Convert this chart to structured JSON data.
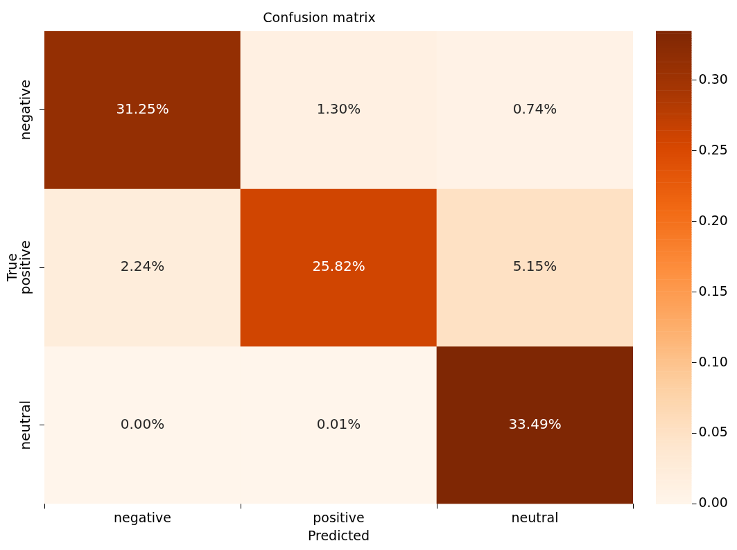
{
  "chart_data": {
    "type": "heatmap",
    "title": "Confusion matrix",
    "xlabel": "Predicted",
    "ylabel": "True",
    "categories": [
      "negative",
      "positive",
      "neutral"
    ],
    "y_categories": [
      "negative",
      "positive",
      "neutral"
    ],
    "cells": [
      [
        0.3125,
        0.013,
        0.0074
      ],
      [
        0.0224,
        0.2582,
        0.0515
      ],
      [
        0,
        0.0001,
        0.3349
      ]
    ],
    "cell_labels": [
      [
        "31.25%",
        "1.30%",
        "0.74%"
      ],
      [
        "2.24%",
        "25.82%",
        "5.15%"
      ],
      [
        "0.00%",
        "0.01%",
        "33.49%"
      ]
    ],
    "clim": [
      0,
      0.3349
    ],
    "cticks": [
      {
        "value": 0,
        "label": "0.00"
      },
      {
        "value": 0.05,
        "label": "0.05"
      },
      {
        "value": 0.1,
        "label": "0.10"
      },
      {
        "value": 0.15,
        "label": "0.15"
      },
      {
        "value": 0.2,
        "label": "0.20"
      },
      {
        "value": 0.25,
        "label": "0.25"
      },
      {
        "value": 0.3,
        "label": "0.30"
      }
    ]
  }
}
